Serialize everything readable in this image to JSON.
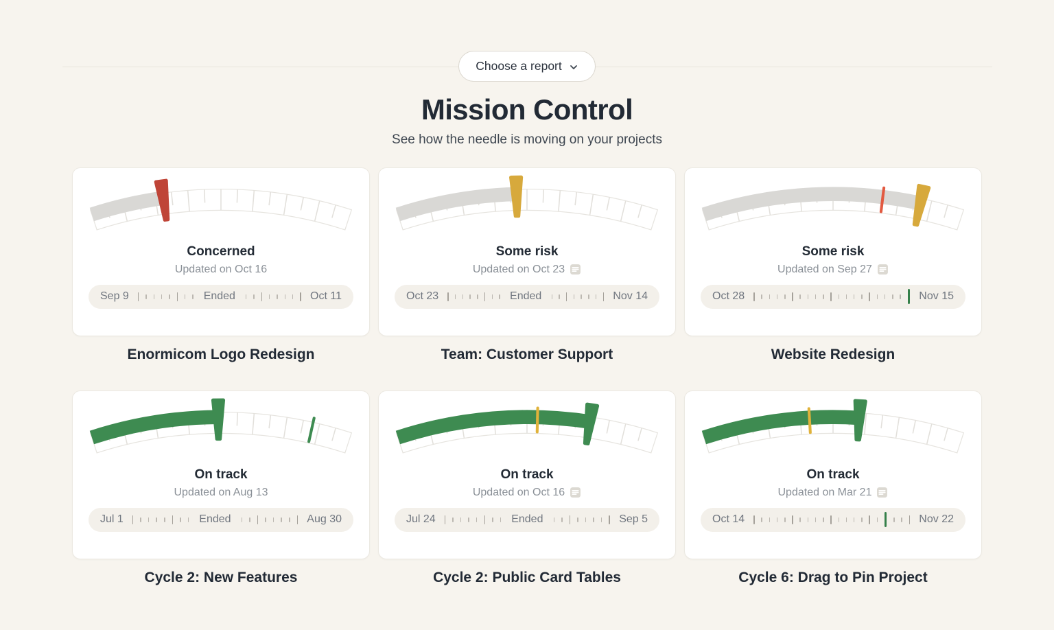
{
  "header": {
    "report_button": {
      "label": "Choose a report",
      "icon": "chevron-down"
    },
    "title": "Mission Control",
    "subtitle": "See how the needle is moving on your projects"
  },
  "colors": {
    "background": "#f7f4ee",
    "card": "#ffffff",
    "on_track_green": "#3e8b51",
    "some_risk_yellow": "#d7a93c",
    "concerned_red": "#bf4437",
    "neutral_gray_fill": "#d9d8d5",
    "timeline_today_marker": "#35804a",
    "gauge_risk_marker": "#e25a41"
  },
  "projects": [
    {
      "title": "Enormicom Logo Redesign",
      "status": "Concerned",
      "updated": "Updated on Oct 16",
      "has_note": false,
      "gauge": {
        "needle_t": 0.28,
        "needle_color": "#bf4437",
        "fill_t": 0.28,
        "fill_color": "#d9d8d5",
        "marker_t": null,
        "marker_color": null
      },
      "timeline": {
        "start": "Sep 9",
        "end": "Oct 11",
        "ended": true,
        "ended_label": "Ended",
        "marker_index": null
      }
    },
    {
      "title": "Team: Customer Support",
      "status": "Some risk",
      "updated": "Updated on Oct 23",
      "has_note": true,
      "gauge": {
        "needle_t": 0.46,
        "needle_color": "#d7a93c",
        "fill_t": 0.46,
        "fill_color": "#d9d8d5",
        "marker_t": null,
        "marker_color": null
      },
      "timeline": {
        "start": "Oct 23",
        "end": "Nov 14",
        "ended": true,
        "ended_label": "Ended",
        "marker_index": null
      }
    },
    {
      "title": "Website Redesign",
      "status": "Some risk",
      "updated": "Updated on Sep 27",
      "has_note": true,
      "gauge": {
        "needle_t": 0.835,
        "needle_color": "#d7a93c",
        "fill_t": 0.835,
        "fill_color": "#d9d8d5",
        "marker_t": 0.69,
        "marker_color": "#e25a41"
      },
      "timeline": {
        "start": "Oct 28",
        "end": "Nov 15",
        "ended": false,
        "ended_label": "",
        "marker_index": 20
      }
    },
    {
      "title": "Cycle 2: New Features",
      "status": "On track",
      "updated": "Updated on Aug 13",
      "has_note": false,
      "gauge": {
        "needle_t": 0.49,
        "needle_color": "#3e8b51",
        "fill_t": 0.49,
        "fill_color": "#3e8b51",
        "marker_t": 0.85,
        "marker_color": "#3e8b51"
      },
      "timeline": {
        "start": "Jul 1",
        "end": "Aug 30",
        "ended": true,
        "ended_label": "Ended",
        "marker_index": null
      }
    },
    {
      "title": "Cycle 2: Public Card Tables",
      "status": "On track",
      "updated": "Updated on Oct 16",
      "has_note": true,
      "gauge": {
        "needle_t": 0.74,
        "needle_color": "#3e8b51",
        "fill_t": 0.74,
        "fill_color": "#3e8b51",
        "marker_t": 0.54,
        "marker_color": "#e0b23a"
      },
      "timeline": {
        "start": "Jul 24",
        "end": "Sep 5",
        "ended": true,
        "ended_label": "Ended",
        "marker_index": null
      }
    },
    {
      "title": "Cycle 6: Drag to Pin Project",
      "status": "On track",
      "updated": "Updated on Mar 21",
      "has_note": true,
      "gauge": {
        "needle_t": 0.6,
        "needle_color": "#3e8b51",
        "fill_t": 0.6,
        "fill_color": "#3e8b51",
        "marker_t": 0.41,
        "marker_color": "#e0b23a"
      },
      "timeline": {
        "start": "Oct 14",
        "end": "Nov 22",
        "ended": false,
        "ended_label": "",
        "marker_index": 17
      }
    }
  ]
}
